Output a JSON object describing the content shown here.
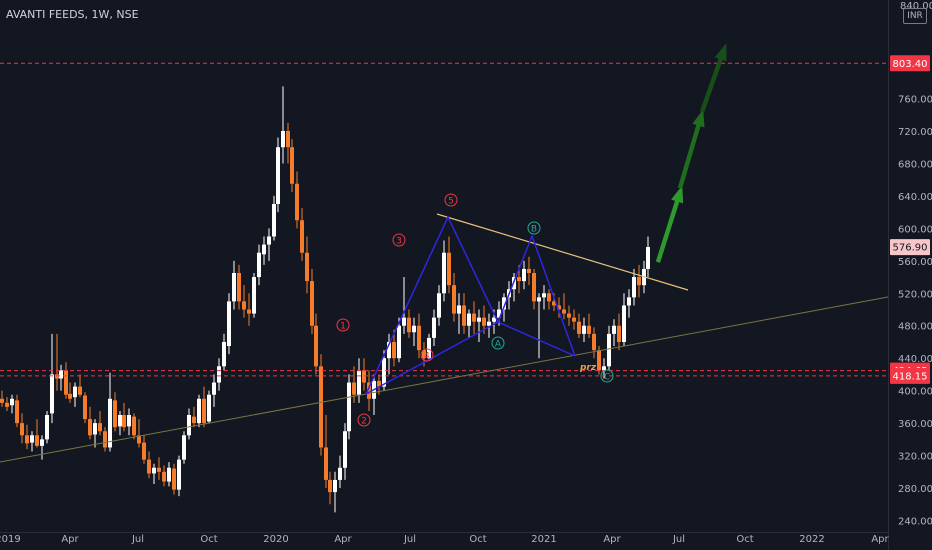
{
  "header": {
    "title": "AVANTI FEEDS, 1W, NSE",
    "currency": "INR"
  },
  "colors": {
    "up": "#ffffff",
    "down": "#f57c2a",
    "pattern": "#2f26e0",
    "trendline": "#e8c27a",
    "support": "#7a7542",
    "level": "#f23645",
    "arrow": "#1f6e1f"
  },
  "chart_data": {
    "type": "candlestick",
    "yaxis": {
      "min": 220,
      "max": 840,
      "ticks": [
        240,
        280,
        320,
        360,
        400,
        440,
        480,
        520,
        560,
        600,
        640,
        680,
        720,
        760
      ]
    },
    "xaxis": {
      "ticks": [
        "2019",
        "Apr",
        "Jul",
        "Oct",
        "2020",
        "Apr",
        "Jul",
        "Oct",
        "2021",
        "Apr",
        "Jul",
        "Oct",
        "2022",
        "Apr"
      ]
    },
    "price_labels": [
      {
        "text": "803.40",
        "value": 803.4,
        "style": "level"
      },
      {
        "text": "576.90",
        "value": 576.9,
        "style": "last"
      },
      {
        "text": "424.65",
        "value": 424.65,
        "style": "level"
      },
      {
        "text": "418.15",
        "value": 418.15,
        "style": "level"
      }
    ],
    "levels": [
      803.4,
      424.65,
      418.15
    ],
    "pattern_labels": [
      {
        "text": "1"
      },
      {
        "text": "2"
      },
      {
        "text": "3"
      },
      {
        "text": "4"
      },
      {
        "text": "5"
      },
      {
        "text": "A"
      },
      {
        "text": "B"
      },
      {
        "text": "C"
      }
    ],
    "annotation": "prz"
  }
}
